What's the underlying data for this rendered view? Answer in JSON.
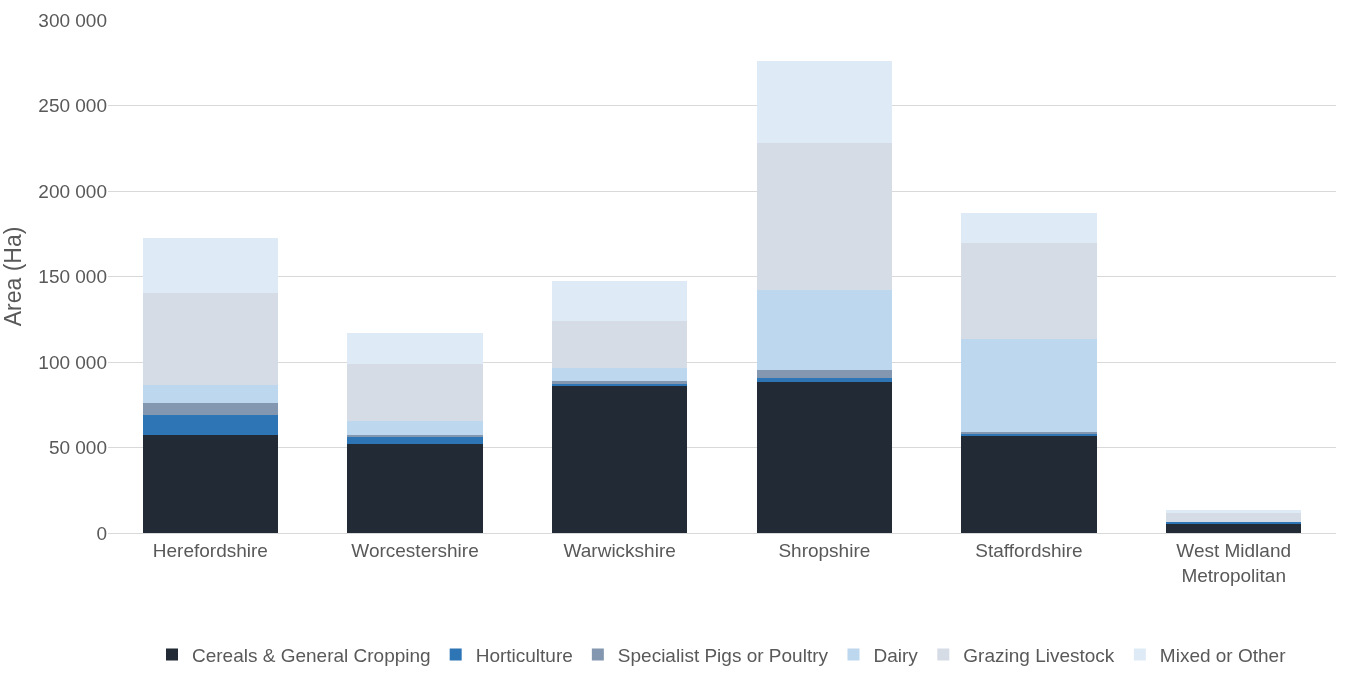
{
  "chart_data": {
    "type": "bar",
    "stacked": true,
    "ylabel": "Area (Ha)",
    "categories": [
      "Herefordshire",
      "Worcestershire",
      "Warwickshire",
      "Shropshire",
      "Staffordshire",
      "West Midland Metropolitan"
    ],
    "series": [
      {
        "name": "Cereals & General Cropping",
        "color": "#222a35",
        "values": [
          57400,
          51800,
          86400,
          88200,
          57000,
          5800
        ]
      },
      {
        "name": "Horticulture",
        "color": "#2e75b6",
        "values": [
          11600,
          4400,
          1000,
          2300,
          1100,
          800
        ]
      },
      {
        "name": "Specialist Pigs or Poultry",
        "color": "#8497b0",
        "values": [
          7200,
          1200,
          1400,
          4900,
          1200,
          null
        ]
      },
      {
        "name": "Dairy",
        "color": "#bdd7ee",
        "values": [
          10200,
          8200,
          7600,
          46500,
          54100,
          null
        ]
      },
      {
        "name": "Grazing Livestock",
        "color": "#d6dce5",
        "values": [
          54200,
          33000,
          27800,
          86400,
          56400,
          5200
        ]
      },
      {
        "name": "Mixed or Other",
        "color": "#deebf7",
        "values": [
          31800,
          18600,
          23400,
          47500,
          17200,
          1400
        ]
      }
    ],
    "ylim": [
      0,
      300000
    ],
    "yticks": [
      0,
      {
        "value": 50000,
        "label": "50 000"
      },
      {
        "value": 100000,
        "label": "100 000"
      },
      {
        "value": 150000,
        "label": "150 000"
      },
      {
        "value": 200000,
        "label": "200 000"
      },
      {
        "value": 250000,
        "label": "250 000"
      },
      {
        "value": 300000,
        "label": "300 000"
      }
    ],
    "grid": "y",
    "legend": "bottom"
  }
}
